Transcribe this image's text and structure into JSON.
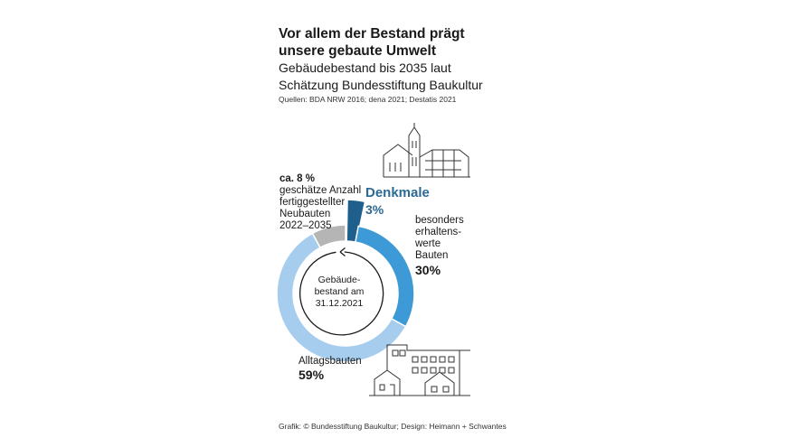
{
  "header": {
    "title": "Vor allem der Bestand prägt unsere gebaute Umwelt",
    "subtitle": "Gebäudebestand bis 2035 laut Schätzung Bundesstiftung Baukultur",
    "sources": "Quellen: BDA NRW 2016; dena 2021; Destatis 2021"
  },
  "footer": {
    "credit": "Grafik: © Bundesstiftung Baukultur; Design: Heimann + Schwantes"
  },
  "center_label": [
    "Gebäude-",
    "bestand am",
    "31.12.2021"
  ],
  "labels": {
    "neubauten": {
      "value": "ca. 8 %",
      "text": [
        "geschätze Anzahl",
        "fertiggestellter",
        "Neubauten",
        "2022–2035"
      ]
    },
    "denkmale": {
      "name": "Denkmale",
      "value": "3%"
    },
    "besonders": {
      "text": [
        "besonders",
        "erhaltens-",
        "werte",
        "Bauten"
      ],
      "value": "30%"
    },
    "alltags": {
      "name": "Alltagsbauten",
      "value": "59%"
    }
  },
  "chart_data": {
    "type": "pie",
    "style": "donut",
    "slices": [
      {
        "name": "Denkmale",
        "value": 3,
        "color": "#1f5f8b"
      },
      {
        "name": "besonders erhaltenswerte Bauten",
        "value": 30,
        "color": "#3d9ad6"
      },
      {
        "name": "Alltagsbauten",
        "value": 59,
        "color": "#a7cdee"
      },
      {
        "name": "Neubauten 2022–2035",
        "value": 8,
        "color": "#b5b5b5"
      }
    ]
  },
  "icons": [
    "church-building-icon",
    "apartment-block-icon",
    "house-icon"
  ]
}
